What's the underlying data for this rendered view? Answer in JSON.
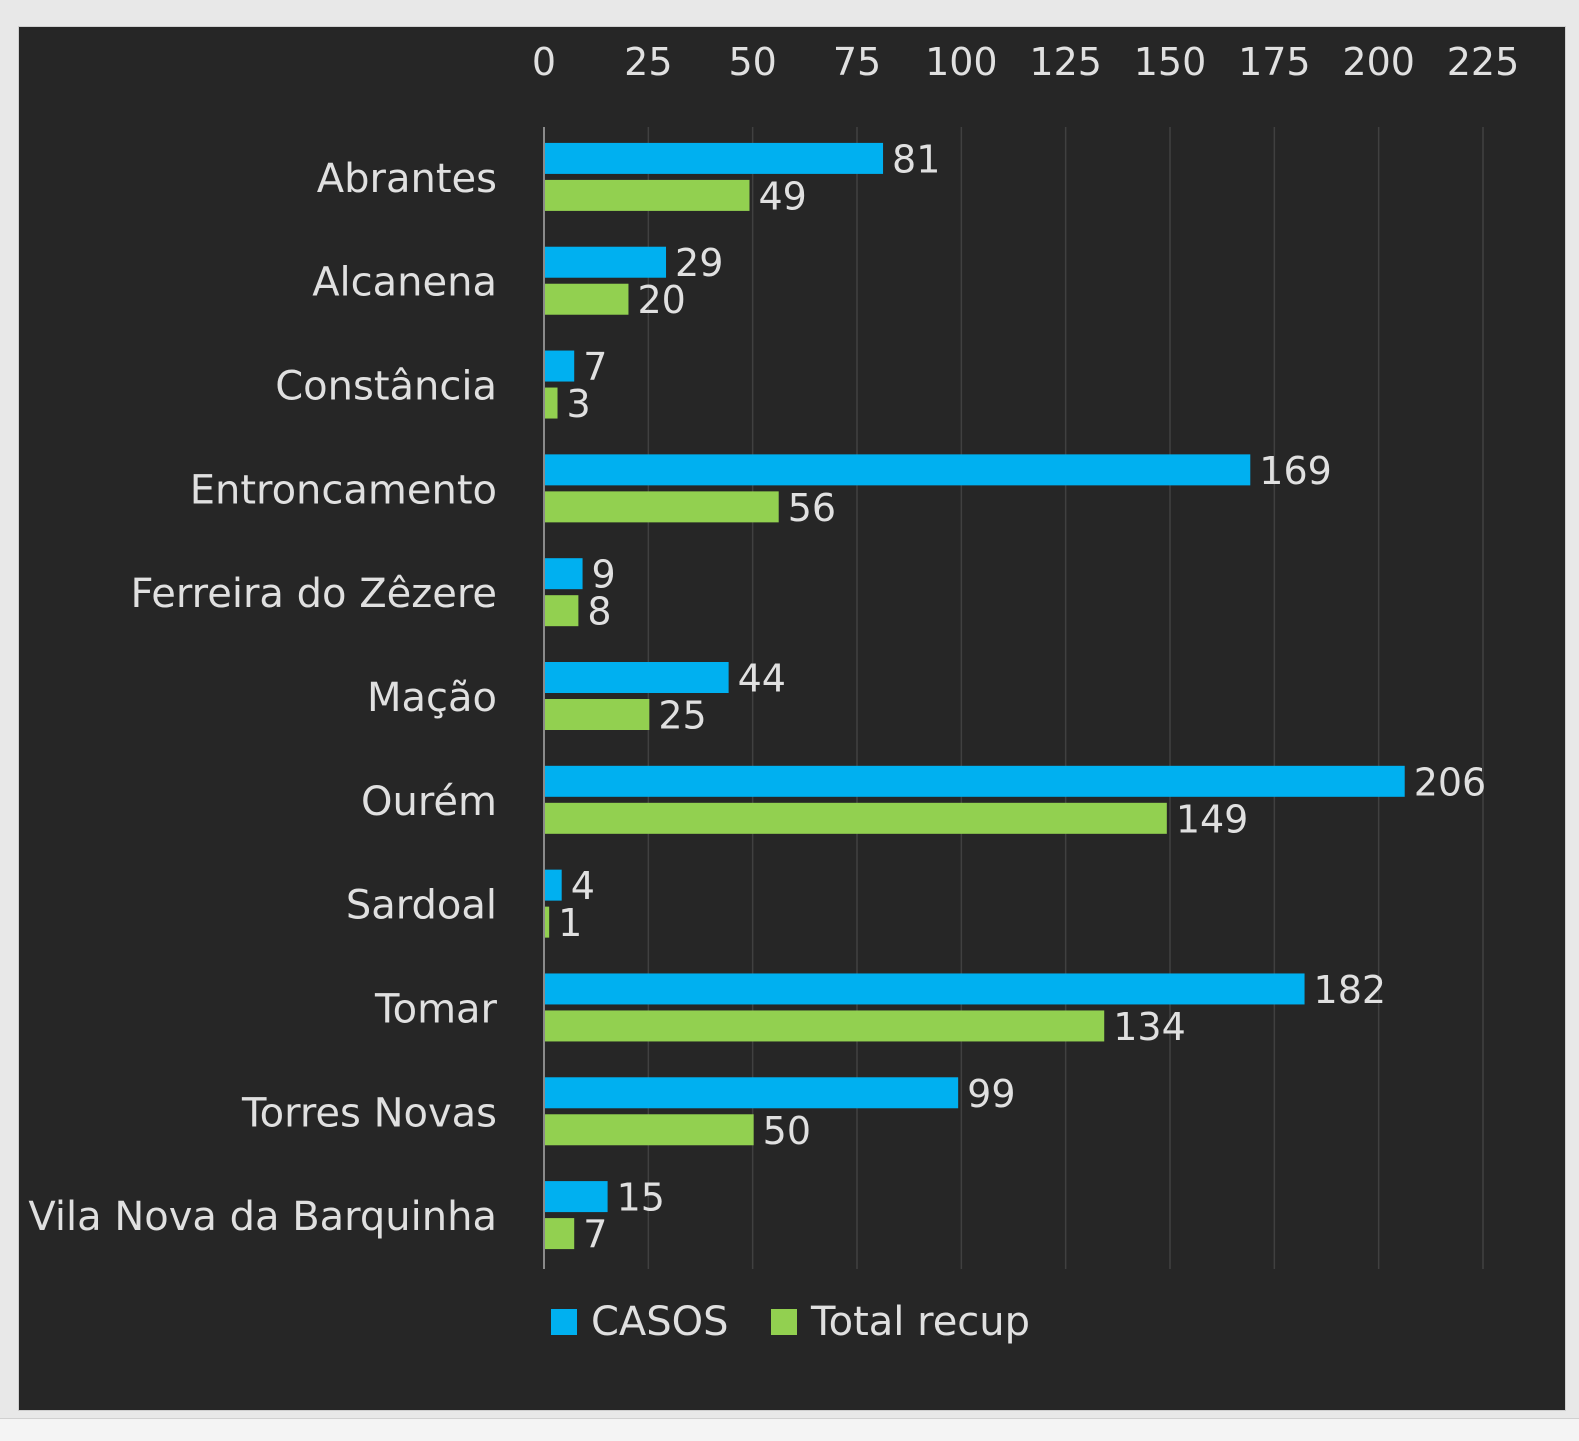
{
  "chart_data": {
    "type": "bar",
    "orientation": "horizontal",
    "categories": [
      "Abrantes",
      "Alcanena",
      "Constância",
      "Entroncamento",
      "Ferreira do Zêzere",
      "Mação",
      "Ourém",
      "Sardoal",
      "Tomar",
      "Torres Novas",
      "Vila Nova da Barquinha"
    ],
    "series": [
      {
        "name": "CASOS",
        "color": "#00b0f0",
        "values": [
          81,
          29,
          7,
          169,
          9,
          44,
          206,
          4,
          182,
          99,
          15
        ]
      },
      {
        "name": "Total recup",
        "color": "#92d050",
        "values": [
          49,
          20,
          3,
          56,
          8,
          25,
          149,
          1,
          134,
          50,
          7
        ]
      }
    ],
    "xlim": [
      0,
      225
    ],
    "xticks": [
      0,
      25,
      50,
      75,
      100,
      125,
      150,
      175,
      200,
      225
    ],
    "x_axis_position": "top",
    "grid": true,
    "data_labels": true,
    "legend_position": "bottom",
    "background": "#262626",
    "text_color": "#e0e0e0",
    "grid_color": "#404040"
  }
}
